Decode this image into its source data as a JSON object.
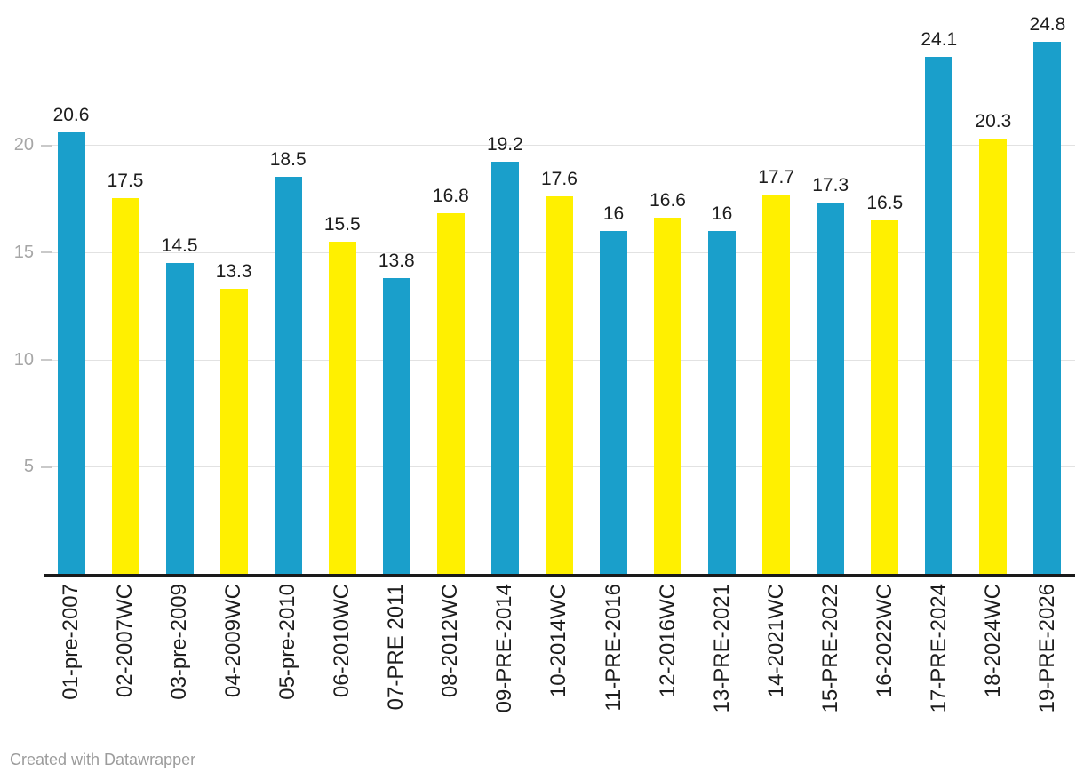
{
  "chart_data": {
    "type": "bar",
    "title": "",
    "xlabel": "",
    "ylabel": "",
    "categories": [
      "01-pre-2007",
      "02-2007WC",
      "03-pre-2009",
      "04-2009WC",
      "05-pre-2010",
      "06-2010WC",
      "07-PRE 2011",
      "08-2012WC",
      "09-PRE-2014",
      "10-2014WC",
      "11-PRE-2016",
      "12-2016WC",
      "13-PRE-2021",
      "14-2021WC",
      "15-PRE-2022",
      "16-2022WC",
      "17-PRE-2024",
      "18-2024WC",
      "19-PRE-2026"
    ],
    "values": [
      20.6,
      17.5,
      14.5,
      13.3,
      18.5,
      15.5,
      13.8,
      16.8,
      19.2,
      17.6,
      16,
      16.6,
      16,
      17.7,
      17.3,
      16.5,
      24.1,
      20.3,
      24.8
    ],
    "bar_color_keys": [
      "blue",
      "yellow",
      "blue",
      "yellow",
      "blue",
      "yellow",
      "blue",
      "yellow",
      "blue",
      "yellow",
      "blue",
      "yellow",
      "blue",
      "yellow",
      "blue",
      "yellow",
      "blue",
      "yellow",
      "blue"
    ],
    "palette": {
      "blue": "#1a9fcb",
      "yellow": "#fff000"
    },
    "yticks": [
      5,
      10,
      15,
      20
    ],
    "ytick_labels": [
      "5",
      "10",
      "15",
      "20"
    ],
    "ylim": [
      0,
      26
    ],
    "grid": "horizontal-light",
    "value_labels_shown": true,
    "x_labels_rotated_degrees": -90,
    "legend": "none"
  },
  "colors": {
    "bar_blue": "#1a9fcb",
    "bar_yellow": "#fff000",
    "gridline": "#e2e2e2",
    "tick": "#c9c9c9",
    "y_axis_text": "#a6a6a6",
    "value_text": "#1d1d1d",
    "x_axis_text": "#1d1d1d",
    "baseline": "#1a1a1a",
    "credit_text": "#9c9c9c",
    "background": "#ffffff"
  },
  "footer": {
    "credit": "Created with Datawrapper"
  }
}
